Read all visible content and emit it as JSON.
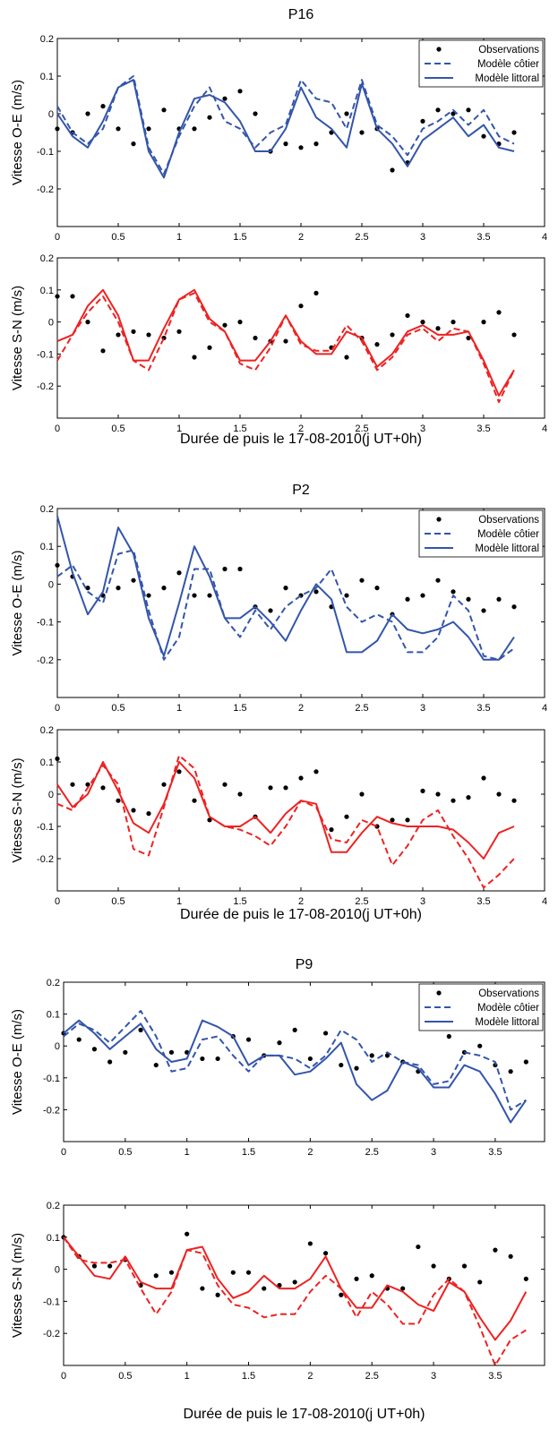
{
  "colors": {
    "blue": "#3355aa",
    "red": "#ee2222",
    "obs": "#000000"
  },
  "legend": {
    "observations": "Observations",
    "cotier": "Modèle côtier",
    "littoral": "Modèle littoral"
  },
  "chart_data": [
    {
      "type": "line",
      "title": "P16",
      "ylabel": "Vitesse O-E (m/s)",
      "xlabel": "",
      "xlim": [
        0,
        4
      ],
      "ylim": [
        -0.3,
        0.2
      ],
      "xticks": [
        "0",
        "0.5",
        "1",
        "1.5",
        "2",
        "2.5",
        "3",
        "3.5",
        "4"
      ],
      "yticks": [
        "0.2",
        "0.1",
        "0",
        "-0.1",
        "-0.2"
      ],
      "color": "blue",
      "legend": "top-right",
      "x": [
        0,
        0.125,
        0.25,
        0.375,
        0.5,
        0.625,
        0.75,
        0.875,
        1,
        1.125,
        1.25,
        1.375,
        1.5,
        1.625,
        1.75,
        1.875,
        2,
        2.125,
        2.25,
        2.375,
        2.5,
        2.625,
        2.75,
        2.875,
        3,
        3.125,
        3.25,
        3.375,
        3.5,
        3.625,
        3.75
      ],
      "series": [
        {
          "name": "Observations",
          "kind": "obs",
          "values": [
            -0.04,
            -0.05,
            0,
            0.02,
            -0.04,
            -0.08,
            -0.04,
            0.01,
            -0.04,
            -0.04,
            -0.01,
            0.04,
            0.06,
            0,
            -0.1,
            -0.08,
            -0.09,
            -0.08,
            -0.05,
            0,
            -0.05,
            -0.04,
            -0.15,
            -0.13,
            -0.02,
            0.01,
            0,
            0.01,
            -0.06,
            -0.08,
            -0.05
          ]
        },
        {
          "name": "Modèle côtier",
          "kind": "dash",
          "values": [
            0.02,
            -0.05,
            -0.08,
            -0.04,
            0.07,
            0.1,
            -0.09,
            -0.16,
            -0.06,
            0.02,
            0.07,
            -0.02,
            -0.04,
            -0.09,
            -0.05,
            -0.03,
            0.09,
            0.04,
            0.03,
            -0.04,
            0.09,
            -0.03,
            -0.06,
            -0.11,
            -0.04,
            -0.02,
            0.01,
            -0.03,
            0.01,
            -0.06,
            -0.08
          ]
        },
        {
          "name": "Modèle littoral",
          "kind": "solid",
          "values": [
            0,
            -0.06,
            -0.09,
            -0.02,
            0.07,
            0.09,
            -0.1,
            -0.17,
            -0.05,
            0.04,
            0.05,
            0.03,
            -0.02,
            -0.1,
            -0.1,
            -0.04,
            0.07,
            -0.01,
            -0.04,
            -0.09,
            0.08,
            -0.04,
            -0.08,
            -0.14,
            -0.07,
            -0.04,
            -0.01,
            -0.06,
            -0.03,
            -0.09,
            -0.1
          ]
        }
      ]
    },
    {
      "type": "line",
      "title": "",
      "ylabel": "Vitesse S-N (m/s)",
      "xlabel": "Durée de puis le 17-08-2010(j UT+0h)",
      "xlim": [
        0,
        4
      ],
      "ylim": [
        -0.3,
        0.2
      ],
      "xticks": [
        "0",
        "0.5",
        "1",
        "1.5",
        "2",
        "2.5",
        "3",
        "3.5",
        "4"
      ],
      "yticks": [
        "0.2",
        "0.1",
        "0",
        "-0.1",
        "-0.2"
      ],
      "color": "red",
      "x": [
        0,
        0.125,
        0.25,
        0.375,
        0.5,
        0.625,
        0.75,
        0.875,
        1,
        1.125,
        1.25,
        1.375,
        1.5,
        1.625,
        1.75,
        1.875,
        2,
        2.125,
        2.25,
        2.375,
        2.5,
        2.625,
        2.75,
        2.875,
        3,
        3.125,
        3.25,
        3.375,
        3.5,
        3.625,
        3.75
      ],
      "series": [
        {
          "name": "Observations",
          "kind": "obs",
          "values": [
            0.08,
            0.08,
            0,
            -0.09,
            -0.04,
            -0.03,
            -0.04,
            -0.05,
            -0.03,
            -0.11,
            -0.08,
            -0.01,
            0,
            -0.05,
            -0.06,
            -0.06,
            0.05,
            0.09,
            -0.08,
            -0.11,
            -0.05,
            -0.07,
            -0.04,
            0.02,
            0,
            -0.02,
            0,
            -0.05,
            0,
            0.03,
            -0.04
          ]
        },
        {
          "name": "Modèle côtier",
          "kind": "dash",
          "values": [
            -0.12,
            -0.04,
            0.03,
            0.08,
            0,
            -0.12,
            -0.15,
            -0.05,
            0.07,
            0.09,
            0,
            -0.03,
            -0.13,
            -0.15,
            -0.08,
            0.02,
            -0.07,
            -0.09,
            -0.09,
            -0.01,
            -0.06,
            -0.15,
            -0.11,
            -0.04,
            -0.02,
            -0.06,
            -0.02,
            -0.03,
            -0.13,
            -0.25,
            -0.15
          ]
        },
        {
          "name": "Modèle littoral",
          "kind": "solid",
          "values": [
            -0.06,
            -0.04,
            0.05,
            0.1,
            0.02,
            -0.12,
            -0.12,
            -0.02,
            0.07,
            0.1,
            0.01,
            -0.03,
            -0.12,
            -0.12,
            -0.06,
            0.02,
            -0.06,
            -0.1,
            -0.1,
            -0.03,
            -0.05,
            -0.14,
            -0.1,
            -0.03,
            -0.01,
            -0.04,
            -0.04,
            -0.03,
            -0.12,
            -0.23,
            -0.15
          ]
        }
      ]
    },
    {
      "type": "line",
      "title": "P2",
      "ylabel": "Vitesse O-E (m/s)",
      "xlabel": "",
      "xlim": [
        0,
        4
      ],
      "ylim": [
        -0.3,
        0.2
      ],
      "xticks": [
        "0",
        "0.5",
        "1",
        "1.5",
        "2",
        "2.5",
        "3",
        "3.5",
        "4"
      ],
      "yticks": [
        "0.2",
        "0.1",
        "0",
        "-0.1",
        "-0.2"
      ],
      "color": "blue",
      "legend": "top-right",
      "x": [
        0,
        0.125,
        0.25,
        0.375,
        0.5,
        0.625,
        0.75,
        0.875,
        1,
        1.125,
        1.25,
        1.375,
        1.5,
        1.625,
        1.75,
        1.875,
        2,
        2.125,
        2.25,
        2.375,
        2.5,
        2.625,
        2.75,
        2.875,
        3,
        3.125,
        3.25,
        3.375,
        3.5,
        3.625,
        3.75
      ],
      "series": [
        {
          "name": "Observations",
          "kind": "obs",
          "values": [
            0.05,
            0.02,
            -0.01,
            -0.03,
            -0.01,
            0.01,
            -0.03,
            -0.01,
            0.03,
            -0.03,
            -0.03,
            0.04,
            0.04,
            -0.06,
            -0.07,
            -0.01,
            -0.03,
            -0.02,
            -0.06,
            -0.03,
            0.01,
            -0.01,
            -0.08,
            -0.04,
            -0.03,
            0.01,
            -0.02,
            -0.04,
            -0.07,
            -0.04,
            -0.06
          ]
        },
        {
          "name": "Modèle côtier",
          "kind": "dash",
          "values": [
            0.02,
            0.05,
            -0.02,
            -0.05,
            0.08,
            0.09,
            -0.07,
            -0.2,
            -0.14,
            0.04,
            0.04,
            -0.09,
            -0.14,
            -0.07,
            -0.12,
            -0.06,
            -0.03,
            -0.01,
            0.04,
            -0.06,
            -0.1,
            -0.08,
            -0.1,
            -0.18,
            -0.18,
            -0.14,
            -0.03,
            -0.07,
            -0.19,
            -0.2,
            -0.17
          ]
        },
        {
          "name": "Modèle littoral",
          "kind": "solid",
          "values": [
            0.18,
            0.03,
            -0.08,
            -0.02,
            0.15,
            0.08,
            -0.09,
            -0.19,
            -0.05,
            0.1,
            0.02,
            -0.09,
            -0.09,
            -0.06,
            -0.1,
            -0.15,
            -0.07,
            0,
            -0.04,
            -0.18,
            -0.18,
            -0.15,
            -0.08,
            -0.12,
            -0.13,
            -0.12,
            -0.1,
            -0.14,
            -0.2,
            -0.2,
            -0.14
          ]
        }
      ]
    },
    {
      "type": "line",
      "title": "",
      "ylabel": "Vitesse S-N (m/s)",
      "xlabel": "Durée de puis le 17-08-2010(j UT+0h)",
      "xlim": [
        0,
        4
      ],
      "ylim": [
        -0.3,
        0.2
      ],
      "xticks": [
        "0",
        "0.5",
        "1",
        "1.5",
        "2",
        "2.5",
        "3",
        "3.5",
        "4"
      ],
      "yticks": [
        "0.2",
        "0.1",
        "0",
        "-0.1",
        "-0.2"
      ],
      "color": "red",
      "x": [
        0,
        0.125,
        0.25,
        0.375,
        0.5,
        0.625,
        0.75,
        0.875,
        1,
        1.125,
        1.25,
        1.375,
        1.5,
        1.625,
        1.75,
        1.875,
        2,
        2.125,
        2.25,
        2.375,
        2.5,
        2.625,
        2.75,
        2.875,
        3,
        3.125,
        3.25,
        3.375,
        3.5,
        3.625,
        3.75
      ],
      "series": [
        {
          "name": "Observations",
          "kind": "obs",
          "values": [
            0.11,
            0.03,
            0.03,
            0.02,
            -0.02,
            -0.05,
            -0.06,
            0.03,
            0.07,
            -0.02,
            -0.08,
            0.03,
            0,
            -0.07,
            0.02,
            0.02,
            0.05,
            0.07,
            -0.11,
            -0.07,
            0,
            -0.1,
            -0.08,
            -0.08,
            0.01,
            0,
            -0.02,
            -0.01,
            0.05,
            0,
            -0.02
          ]
        },
        {
          "name": "Modèle côtier",
          "kind": "dash",
          "values": [
            -0.03,
            -0.05,
            0.02,
            0.09,
            0.03,
            -0.17,
            -0.19,
            -0.04,
            0.12,
            0.08,
            -0.07,
            -0.1,
            -0.11,
            -0.13,
            -0.16,
            -0.1,
            -0.02,
            -0.04,
            -0.14,
            -0.15,
            -0.08,
            -0.1,
            -0.22,
            -0.16,
            -0.08,
            -0.05,
            -0.13,
            -0.2,
            -0.29,
            -0.25,
            -0.2
          ]
        },
        {
          "name": "Modèle littoral",
          "kind": "solid",
          "values": [
            0.03,
            -0.04,
            0,
            0.1,
            0.01,
            -0.09,
            -0.12,
            -0.03,
            0.1,
            0.05,
            -0.07,
            -0.1,
            -0.1,
            -0.07,
            -0.12,
            -0.06,
            -0.02,
            -0.03,
            -0.18,
            -0.18,
            -0.12,
            -0.07,
            -0.09,
            -0.1,
            -0.1,
            -0.1,
            -0.11,
            -0.15,
            -0.2,
            -0.12,
            -0.1
          ]
        }
      ]
    },
    {
      "type": "line",
      "title": "P9",
      "ylabel": "Vitesse O-E (m/s)",
      "xlabel": "",
      "xlim": [
        0,
        3.9
      ],
      "ylim": [
        -0.3,
        0.2
      ],
      "xticks": [
        "0",
        "0.5",
        "1",
        "1.5",
        "2",
        "2.5",
        "3",
        "3.5"
      ],
      "yticks": [
        "0.2",
        "0.1",
        "0",
        "-0.1",
        "-0.2"
      ],
      "color": "blue",
      "legend": "top-right",
      "x": [
        0,
        0.125,
        0.25,
        0.375,
        0.5,
        0.625,
        0.75,
        0.875,
        1,
        1.125,
        1.25,
        1.375,
        1.5,
        1.625,
        1.75,
        1.875,
        2,
        2.125,
        2.25,
        2.375,
        2.5,
        2.625,
        2.75,
        2.875,
        3,
        3.125,
        3.25,
        3.375,
        3.5,
        3.625,
        3.75
      ],
      "series": [
        {
          "name": "Observations",
          "kind": "obs",
          "values": [
            0.04,
            0.02,
            -0.01,
            -0.05,
            -0.02,
            0.05,
            -0.06,
            -0.02,
            -0.02,
            -0.04,
            -0.04,
            0.03,
            0.02,
            -0.03,
            0.01,
            0.05,
            -0.04,
            0.04,
            -0.06,
            -0.07,
            -0.03,
            -0.03,
            -0.05,
            -0.08,
            0.06,
            0.03,
            -0.02,
            0,
            -0.06,
            -0.08,
            -0.05
          ]
        },
        {
          "name": "Modèle côtier",
          "kind": "dash",
          "values": [
            0.03,
            0.07,
            0.05,
            0.01,
            0.06,
            0.11,
            0.03,
            -0.08,
            -0.07,
            0.02,
            0.03,
            -0.03,
            -0.08,
            -0.03,
            -0.03,
            -0.04,
            -0.07,
            -0.03,
            0.05,
            0.02,
            -0.05,
            -0.02,
            -0.05,
            -0.06,
            -0.12,
            -0.11,
            -0.02,
            -0.03,
            -0.05,
            -0.2,
            -0.17
          ]
        },
        {
          "name": "Modèle littoral",
          "kind": "solid",
          "values": [
            0.04,
            0.08,
            0.04,
            -0.01,
            0.03,
            0.07,
            -0.01,
            -0.05,
            -0.04,
            0.08,
            0.06,
            0.03,
            -0.06,
            -0.03,
            -0.03,
            -0.09,
            -0.08,
            -0.04,
            0.01,
            -0.12,
            -0.17,
            -0.14,
            -0.05,
            -0.07,
            -0.13,
            -0.13,
            -0.06,
            -0.08,
            -0.15,
            -0.24,
            -0.17
          ]
        }
      ]
    },
    {
      "type": "line",
      "title": "",
      "ylabel": "Vitesse S-N (m/s)",
      "xlabel": "Durée de puis le 17-08-2010(j UT+0h)",
      "xlim": [
        0,
        3.9
      ],
      "ylim": [
        -0.3,
        0.2
      ],
      "xticks": [
        "0",
        "0.5",
        "1",
        "1.5",
        "2",
        "2.5",
        "3",
        "3.5"
      ],
      "yticks": [
        "0.2",
        "0.1",
        "0",
        "-0.1",
        "-0.2"
      ],
      "color": "red",
      "x": [
        0,
        0.125,
        0.25,
        0.375,
        0.5,
        0.625,
        0.75,
        0.875,
        1,
        1.125,
        1.25,
        1.375,
        1.5,
        1.625,
        1.75,
        1.875,
        2,
        2.125,
        2.25,
        2.375,
        2.5,
        2.625,
        2.75,
        2.875,
        3,
        3.125,
        3.25,
        3.375,
        3.5,
        3.625,
        3.75
      ],
      "series": [
        {
          "name": "Observations",
          "kind": "obs",
          "values": [
            0.1,
            0.04,
            0.01,
            0.01,
            0.03,
            -0.05,
            -0.02,
            -0.01,
            0.11,
            -0.06,
            -0.08,
            -0.01,
            -0.01,
            -0.06,
            -0.05,
            -0.04,
            0.08,
            0.05,
            -0.08,
            -0.03,
            -0.02,
            -0.06,
            -0.06,
            0.07,
            0.01,
            -0.03,
            0.01,
            -0.04,
            0.06,
            0.04,
            -0.03
          ]
        },
        {
          "name": "Modèle côtier",
          "kind": "dash",
          "values": [
            0.1,
            0.03,
            0.02,
            0.02,
            0.03,
            -0.06,
            -0.14,
            -0.07,
            0.06,
            0.05,
            -0.05,
            -0.11,
            -0.12,
            -0.15,
            -0.14,
            -0.14,
            -0.07,
            -0.02,
            -0.06,
            -0.15,
            -0.07,
            -0.11,
            -0.17,
            -0.17,
            -0.08,
            -0.03,
            -0.07,
            -0.18,
            -0.3,
            -0.22,
            -0.19
          ]
        },
        {
          "name": "Modèle littoral",
          "kind": "solid",
          "values": [
            0.1,
            0.04,
            -0.02,
            -0.03,
            0.04,
            -0.04,
            -0.06,
            -0.06,
            0.06,
            0.07,
            -0.03,
            -0.09,
            -0.07,
            -0.02,
            -0.06,
            -0.06,
            -0.03,
            0.04,
            -0.06,
            -0.12,
            -0.12,
            -0.05,
            -0.07,
            -0.11,
            -0.13,
            -0.04,
            -0.07,
            -0.15,
            -0.22,
            -0.16,
            -0.07
          ]
        }
      ]
    }
  ]
}
